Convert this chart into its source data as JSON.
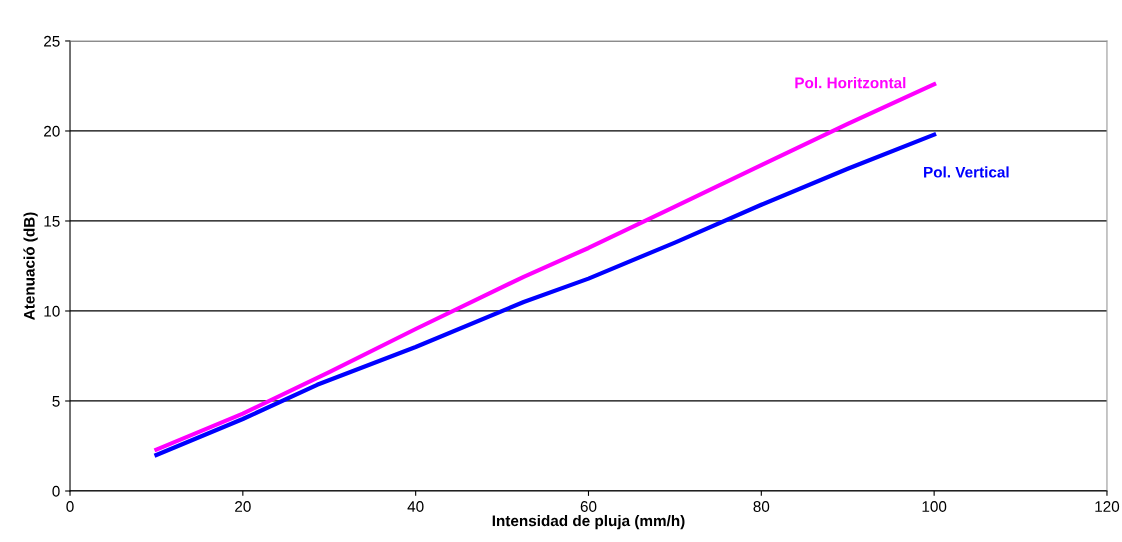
{
  "chart_data": {
    "type": "line",
    "xlabel": "Intensidad de pluja (mm/h)",
    "ylabel": "Atenuació (dB)",
    "xlim": [
      0,
      120
    ],
    "xticks": [
      0,
      20,
      40,
      60,
      80,
      100,
      120
    ],
    "ylim": [
      0,
      25
    ],
    "yticks": [
      0,
      5,
      10,
      15,
      20,
      25
    ],
    "grid": "y",
    "legend": false,
    "marker": "none",
    "line_style": "solid",
    "series": [
      {
        "name": "Pol. Horitzontal",
        "color": "#ff00ff",
        "x": [
          10,
          20,
          30,
          40,
          52.5,
          60,
          70,
          80,
          90,
          100
        ],
        "values": [
          2.3,
          4.3,
          6.6,
          9.0,
          11.9,
          13.5,
          15.8,
          18.1,
          20.4,
          22.6
        ]
      },
      {
        "name": "Pol. Vertical",
        "color": "#0000ff",
        "x": [
          10,
          20,
          28.6,
          40,
          52.5,
          60,
          70,
          80,
          90,
          100
        ],
        "values": [
          2.0,
          4.0,
          5.9,
          8.0,
          10.5,
          11.8,
          13.8,
          15.9,
          17.9,
          19.8
        ]
      }
    ]
  }
}
